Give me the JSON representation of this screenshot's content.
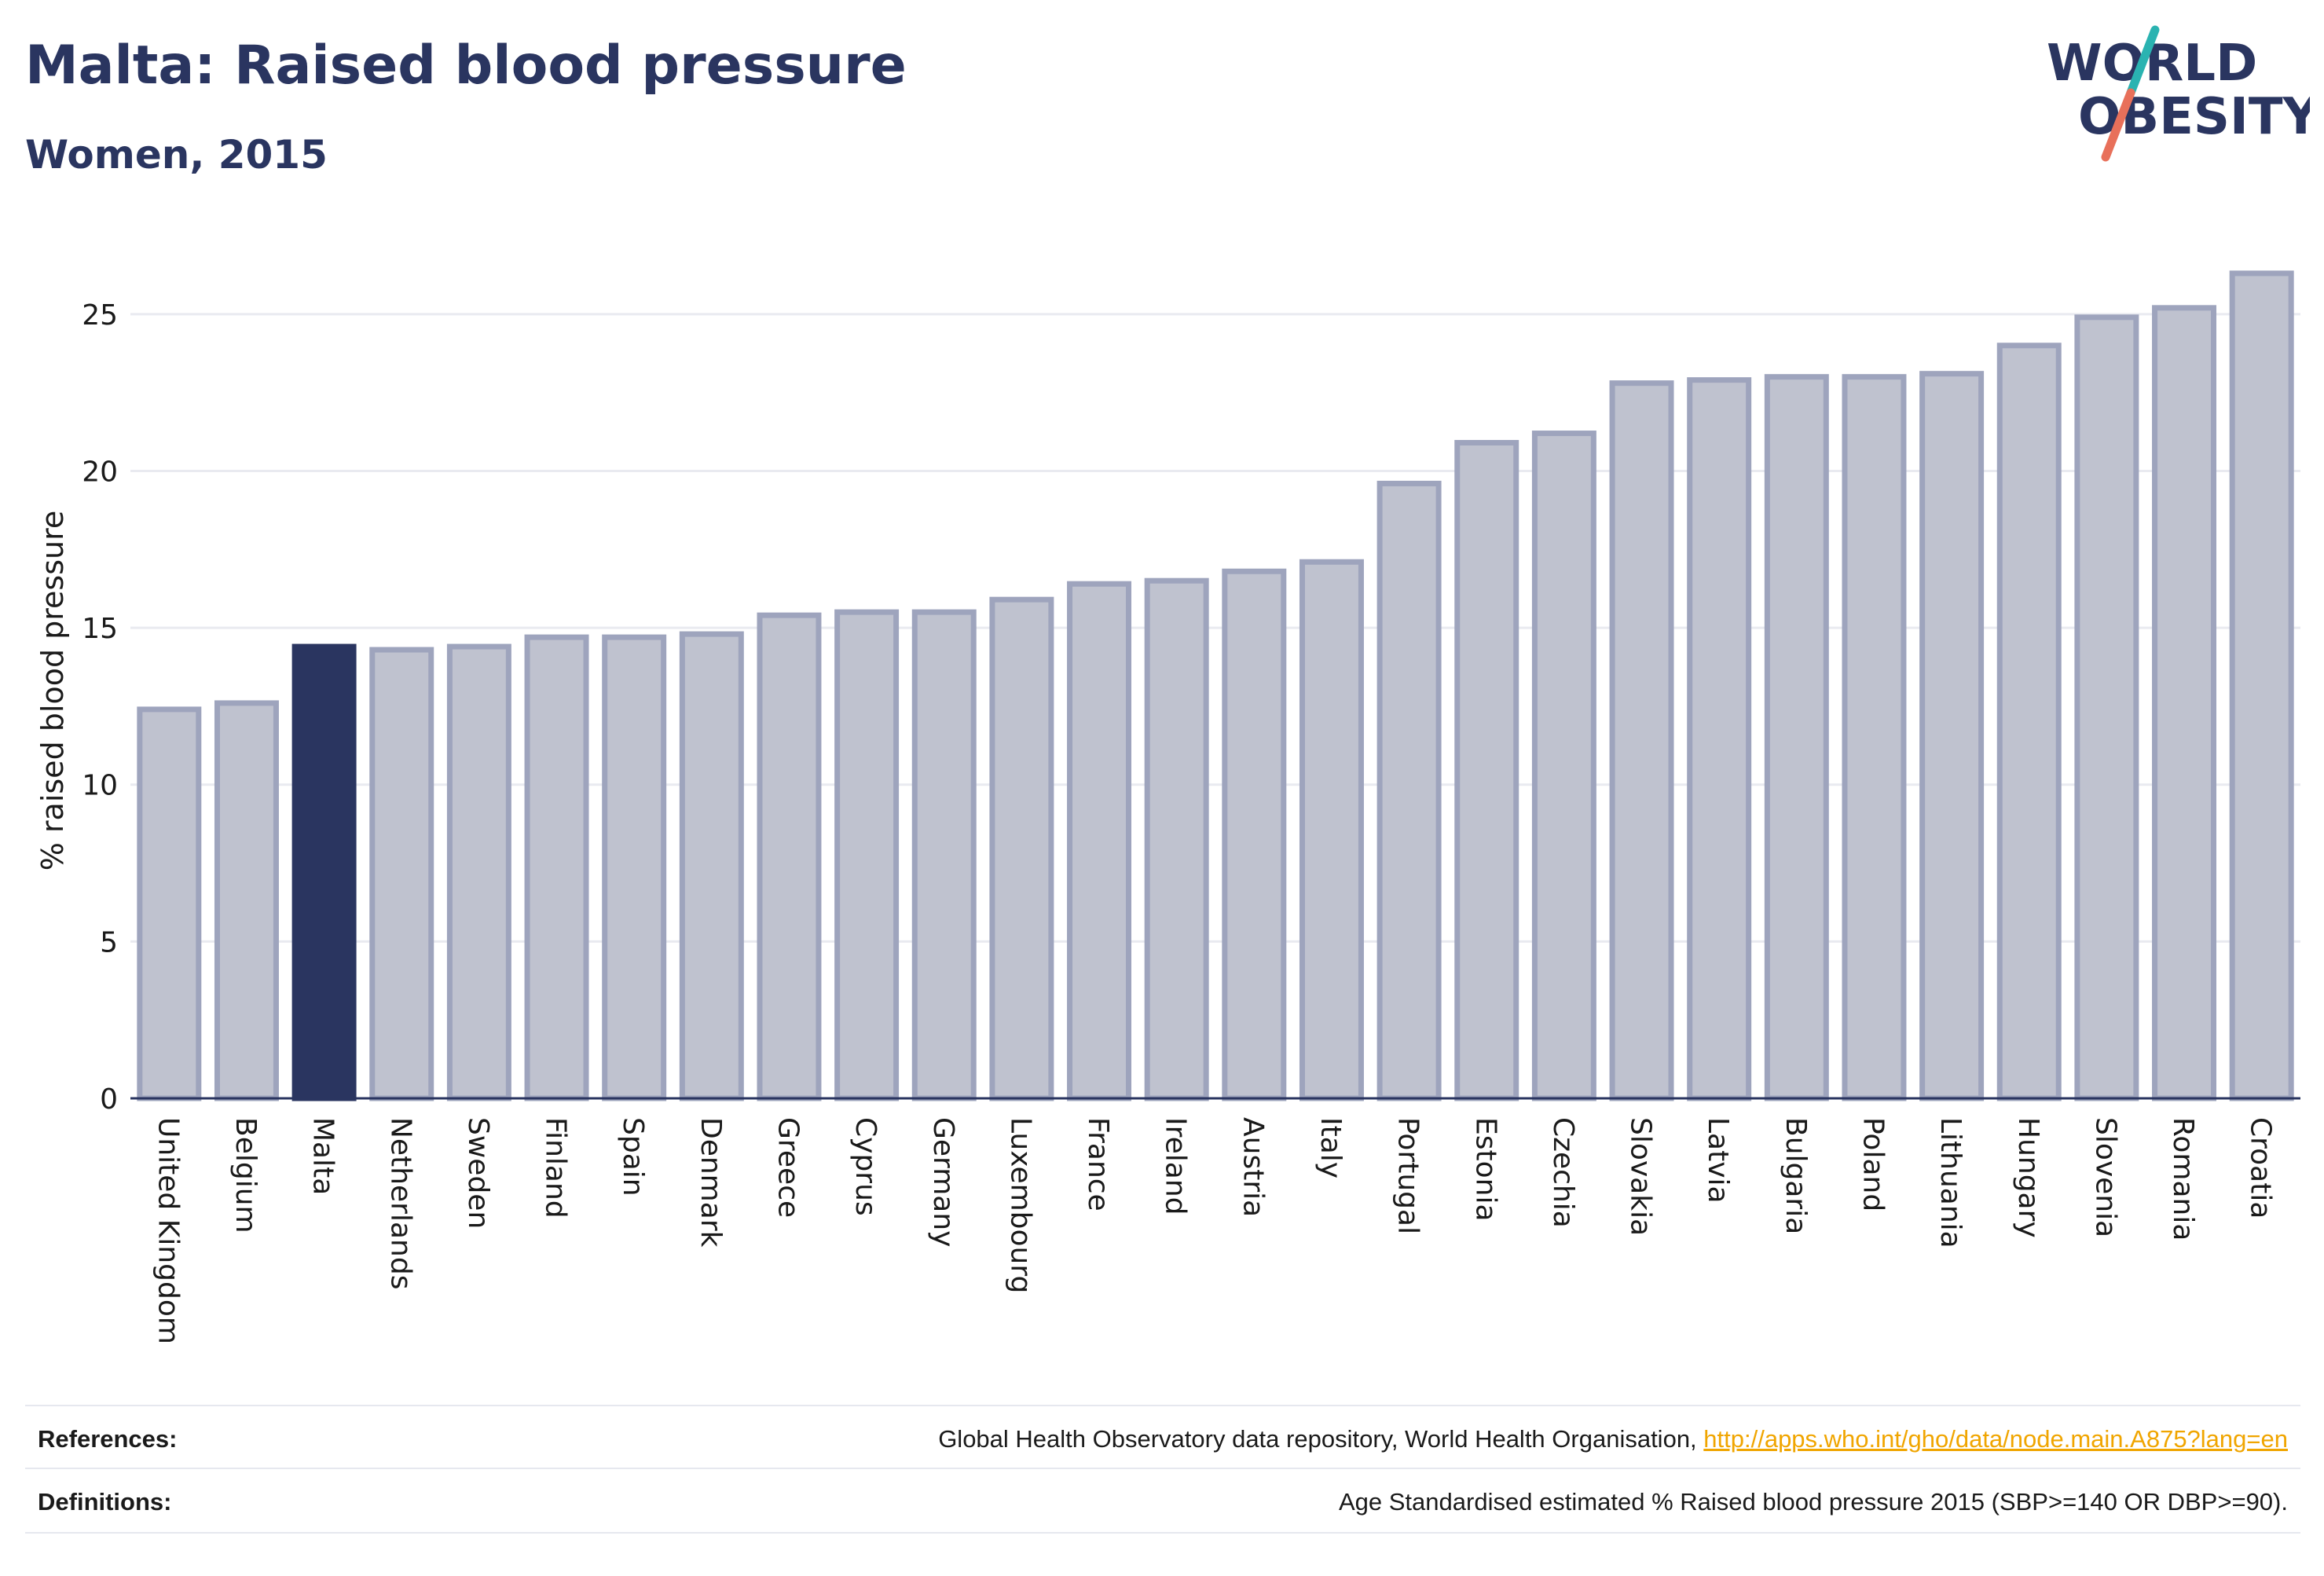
{
  "header": {
    "title": "Malta: Raised blood pressure",
    "subtitle": "Women, 2015"
  },
  "logo": {
    "text_line1": "WORLD",
    "text_line2": "OBESITY",
    "colors": {
      "text": "#2a3560",
      "slash_top": "#2ab3b1",
      "slash_bottom": "#e8705a"
    }
  },
  "colors": {
    "bar_fill": "#bfc2cf",
    "bar_stroke": "#9ea4bd",
    "highlight": "#2a3560",
    "grid": "#e9eaf0",
    "axis": "#2a3560"
  },
  "chart_data": {
    "type": "bar",
    "title": "Malta: Raised blood pressure",
    "subtitle": "Women, 2015",
    "ylabel": "% raised blood pressure",
    "ylim": [
      0,
      27.5
    ],
    "yticks": [
      0,
      5,
      10,
      15,
      20,
      25
    ],
    "grid": true,
    "highlight": "Malta",
    "categories": [
      "United Kingdom",
      "Belgium",
      "Malta",
      "Netherlands",
      "Sweden",
      "Finland",
      "Spain",
      "Denmark",
      "Greece",
      "Cyprus",
      "Germany",
      "Luxembourg",
      "France",
      "Ireland",
      "Austria",
      "Italy",
      "Portugal",
      "Estonia",
      "Czechia",
      "Slovakia",
      "Latvia",
      "Bulgaria",
      "Poland",
      "Lithuania",
      "Hungary",
      "Slovenia",
      "Romania",
      "Croatia"
    ],
    "values": [
      12.4,
      12.6,
      14.4,
      14.3,
      14.4,
      14.7,
      14.7,
      14.8,
      15.4,
      15.5,
      15.5,
      15.9,
      16.4,
      16.5,
      16.8,
      17.1,
      19.6,
      20.9,
      21.2,
      22.8,
      22.9,
      23.0,
      23.0,
      23.1,
      24.0,
      24.9,
      25.2,
      26.3
    ]
  },
  "footer": {
    "references_label": "References:",
    "references_text": "Global Health Observatory data repository, World Health Organisation, ",
    "references_link": "http://apps.who.int/gho/data/node.main.A875?lang=en",
    "definitions_label": "Definitions:",
    "definitions_text": "Age Standardised estimated % Raised blood pressure 2015 (SBP>=140 OR DBP>=90)."
  }
}
